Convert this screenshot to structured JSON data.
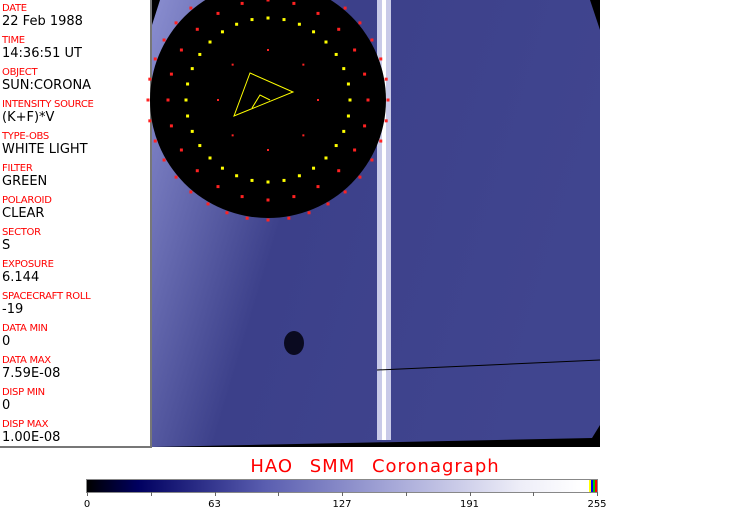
{
  "fields": [
    {
      "label": "DATE",
      "value": "22 Feb 1988"
    },
    {
      "label": "TIME",
      "value": "14:36:51 UT"
    },
    {
      "label": "OBJECT",
      "value": "SUN:CORONA"
    },
    {
      "label": "INTENSITY SOURCE",
      "value": "(K+F)*V"
    },
    {
      "label": "TYPE-OBS",
      "value": "WHITE LIGHT"
    },
    {
      "label": "FILTER",
      "value": "GREEN"
    },
    {
      "label": "POLAROID",
      "value": "CLEAR"
    },
    {
      "label": "SECTOR",
      "value": "S"
    },
    {
      "label": "EXPOSURE",
      "value": "6.144"
    },
    {
      "label": "SPACECRAFT ROLL",
      "value": "-19"
    },
    {
      "label": "DATA MIN",
      "value": "0"
    },
    {
      "label": "DATA MAX",
      "value": "7.59E-08"
    },
    {
      "label": "DISP MIN",
      "value": "0"
    },
    {
      "label": "DISP MAX",
      "value": "1.00E-08"
    }
  ],
  "title": "HAO SMM Coronagraph",
  "colorbar": {
    "ticks": [
      "0",
      "63",
      "127",
      "191",
      "255"
    ],
    "colormap": "black-blue-white",
    "end_colors": [
      "#ffff00",
      "#0000ff",
      "#00c000",
      "#ff0000"
    ]
  },
  "colors": {
    "label": "#ff0000",
    "image_blue": "#4a4f9a",
    "occulter": "#000000"
  }
}
